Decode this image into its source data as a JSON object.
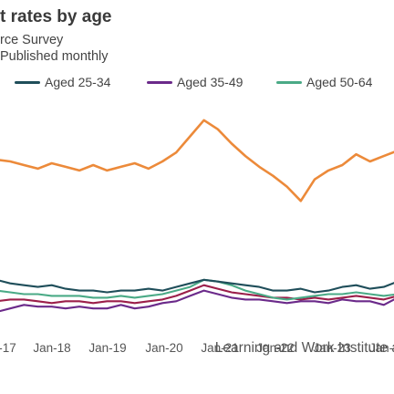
{
  "header": {
    "title": "t rates by age",
    "subtitle": "rce Survey",
    "note": "Published monthly"
  },
  "source": "Learning and Work Institute a",
  "chart_data": {
    "type": "line",
    "x": [
      "2017-01",
      "2017-04",
      "2017-07",
      "2017-10",
      "2018-01",
      "2018-04",
      "2018-07",
      "2018-10",
      "2019-01",
      "2019-04",
      "2019-07",
      "2019-10",
      "2020-01",
      "2020-04",
      "2020-07",
      "2020-10",
      "2021-01",
      "2021-04",
      "2021-07",
      "2021-10",
      "2022-01",
      "2022-04",
      "2022-07",
      "2022-10",
      "2023-01",
      "2023-04",
      "2023-07",
      "2023-10",
      "2024-01",
      "2024-04"
    ],
    "x_ticks": [
      "-17",
      "Jan-18",
      "Jan-19",
      "Jan-20",
      "Jan-21",
      "Jan-22",
      "Jan-23",
      "Jan-"
    ],
    "grid": false,
    "legend_position": "top",
    "series": [
      {
        "name": "",
        "color": "#ec8a3a",
        "values": [
          10.9,
          10.8,
          10.6,
          10.4,
          10.7,
          10.5,
          10.3,
          10.6,
          10.3,
          10.5,
          10.7,
          10.4,
          10.8,
          11.3,
          12.2,
          13.1,
          12.6,
          11.8,
          11.1,
          10.5,
          10.0,
          9.4,
          8.6,
          9.8,
          10.3,
          10.6,
          11.2,
          10.8,
          11.1,
          11.4
        ]
      },
      {
        "name": "Aged 25-34",
        "color": "#1f4e5a",
        "values": [
          4.2,
          4.0,
          3.9,
          3.8,
          3.9,
          3.7,
          3.6,
          3.6,
          3.5,
          3.6,
          3.6,
          3.7,
          3.6,
          3.8,
          4.0,
          4.2,
          4.1,
          4.0,
          3.9,
          3.8,
          3.6,
          3.6,
          3.7,
          3.5,
          3.6,
          3.8,
          3.9,
          3.7,
          3.8,
          4.1
        ]
      },
      {
        "name": "Aged 35-49",
        "color": "#6b2a8a",
        "values": [
          2.4,
          2.6,
          2.8,
          2.7,
          2.7,
          2.6,
          2.7,
          2.6,
          2.6,
          2.8,
          2.6,
          2.7,
          2.9,
          3.0,
          3.3,
          3.6,
          3.4,
          3.2,
          3.1,
          3.1,
          3.0,
          2.9,
          3.0,
          3.0,
          2.9,
          3.1,
          3.0,
          3.0,
          2.8,
          3.2
        ]
      },
      {
        "name": "Aged 50-64",
        "color": "#4aaa86",
        "values": [
          3.6,
          3.5,
          3.4,
          3.4,
          3.3,
          3.3,
          3.3,
          3.2,
          3.2,
          3.3,
          3.2,
          3.3,
          3.4,
          3.6,
          3.8,
          4.2,
          4.1,
          3.9,
          3.6,
          3.4,
          3.2,
          3.1,
          3.2,
          3.3,
          3.4,
          3.4,
          3.5,
          3.4,
          3.3,
          3.4
        ]
      },
      {
        "name": "",
        "color": "#9b1f4a",
        "values": [
          3.0,
          3.1,
          3.1,
          3.0,
          2.9,
          3.0,
          3.0,
          2.9,
          3.0,
          3.0,
          2.9,
          3.0,
          3.1,
          3.3,
          3.6,
          3.9,
          3.7,
          3.5,
          3.4,
          3.3,
          3.2,
          3.2,
          3.1,
          3.2,
          3.1,
          3.2,
          3.3,
          3.2,
          3.1,
          3.3
        ]
      }
    ]
  }
}
